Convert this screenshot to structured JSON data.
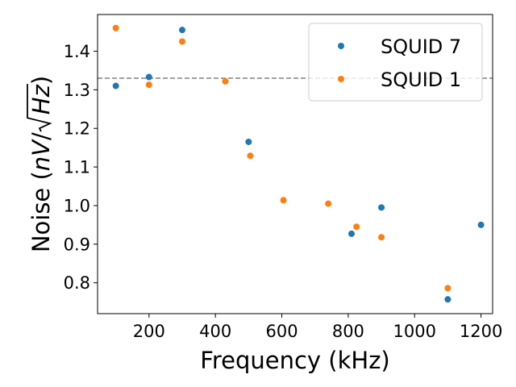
{
  "chart_data": {
    "type": "scatter",
    "xlabel": "Frequency (kHz)",
    "ylabel_prefix": "Noise (",
    "ylabel_unit_nv": "nV",
    "ylabel_slash": "/",
    "ylabel_unit_hz": "Hz",
    "ylabel_suffix": ")",
    "xlim": [
      45,
      1235
    ],
    "ylim": [
      0.72,
      1.495
    ],
    "xticks": [
      200,
      400,
      600,
      800,
      1000,
      1200
    ],
    "yticks": [
      0.8,
      0.9,
      1.0,
      1.1,
      1.2,
      1.3,
      1.4
    ],
    "reference_line": {
      "y": 1.33,
      "color": "#808080",
      "style": "dashed"
    },
    "legend": {
      "position": "top-right"
    },
    "series": [
      {
        "name": "SQUID 7",
        "color": "#1f77b4",
        "points": [
          {
            "x": 100,
            "y": 1.31
          },
          {
            "x": 200,
            "y": 1.333
          },
          {
            "x": 300,
            "y": 1.455
          },
          {
            "x": 500,
            "y": 1.165
          },
          {
            "x": 810,
            "y": 0.927
          },
          {
            "x": 900,
            "y": 0.995
          },
          {
            "x": 1100,
            "y": 0.757
          },
          {
            "x": 1200,
            "y": 0.95
          }
        ]
      },
      {
        "name": "SQUID 1",
        "color": "#ff7f0e",
        "points": [
          {
            "x": 100,
            "y": 1.46
          },
          {
            "x": 200,
            "y": 1.313
          },
          {
            "x": 300,
            "y": 1.425
          },
          {
            "x": 430,
            "y": 1.322
          },
          {
            "x": 505,
            "y": 1.129
          },
          {
            "x": 605,
            "y": 1.014
          },
          {
            "x": 740,
            "y": 1.005
          },
          {
            "x": 825,
            "y": 0.945
          },
          {
            "x": 900,
            "y": 0.918
          },
          {
            "x": 1100,
            "y": 0.786
          }
        ]
      }
    ]
  }
}
